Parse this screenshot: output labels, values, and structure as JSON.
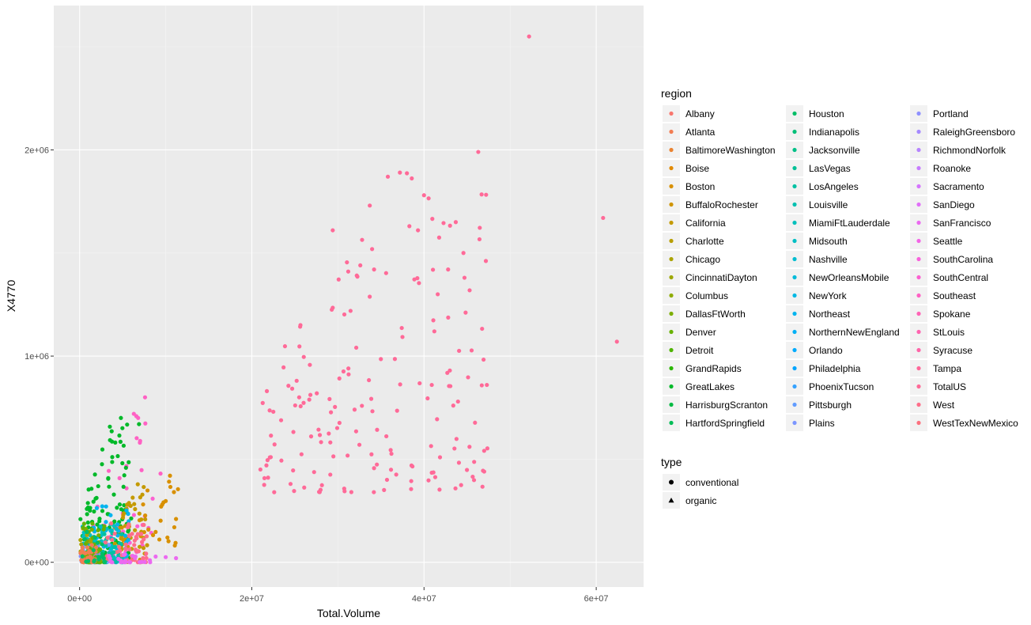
{
  "chart_data": {
    "type": "scatter",
    "xlabel": "Total.Volume",
    "ylabel": "X4770",
    "xlim": [
      -3000000,
      65500000
    ],
    "ylim": [
      -120000,
      2700000
    ],
    "x_ticks": [
      0,
      20000000,
      40000000,
      60000000
    ],
    "x_tick_labels": [
      "0e+00",
      "2e+07",
      "4e+07",
      "6e+07"
    ],
    "y_ticks": [
      0,
      1000000,
      2000000
    ],
    "y_tick_labels": [
      "0e+00",
      "1e+06",
      "2e+06"
    ],
    "grid": true,
    "legend_position": "right",
    "legend": {
      "region_title": "region",
      "regions": [
        {
          "name": "Albany",
          "color": "#F8766D"
        },
        {
          "name": "Atlanta",
          "color": "#F27D52"
        },
        {
          "name": "BaltimoreWashington",
          "color": "#EA8331"
        },
        {
          "name": "Boise",
          "color": "#E18A00"
        },
        {
          "name": "Boston",
          "color": "#D89000"
        },
        {
          "name": "BuffaloRochester",
          "color": "#CF9400"
        },
        {
          "name": "California",
          "color": "#C49A00"
        },
        {
          "name": "Charlotte",
          "color": "#B89E00"
        },
        {
          "name": "Chicago",
          "color": "#ABA300"
        },
        {
          "name": "CincinnatiDayton",
          "color": "#9DA700"
        },
        {
          "name": "Columbus",
          "color": "#8EAB00"
        },
        {
          "name": "DallasFtWorth",
          "color": "#7CAE00"
        },
        {
          "name": "Denver",
          "color": "#68B100"
        },
        {
          "name": "Detroit",
          "color": "#4FB400"
        },
        {
          "name": "GrandRapids",
          "color": "#2AB700"
        },
        {
          "name": "GreatLakes",
          "color": "#00B929"
        },
        {
          "name": "HarrisburgScranton",
          "color": "#00BA42"
        },
        {
          "name": "HartfordSpringfield",
          "color": "#00BC56"
        },
        {
          "name": "Houston",
          "color": "#00BE67"
        },
        {
          "name": "Indianapolis",
          "color": "#00BF78"
        },
        {
          "name": "Jacksonville",
          "color": "#00C087"
        },
        {
          "name": "LasVegas",
          "color": "#00C096"
        },
        {
          "name": "LosAngeles",
          "color": "#00C1A3"
        },
        {
          "name": "Louisville",
          "color": "#00C0B0"
        },
        {
          "name": "MiamiFtLauderdale",
          "color": "#00C0BC"
        },
        {
          "name": "Midsouth",
          "color": "#00BFC4"
        },
        {
          "name": "Nashville",
          "color": "#00BDD0"
        },
        {
          "name": "NewOrleansMobile",
          "color": "#00BBDA"
        },
        {
          "name": "NewYork",
          "color": "#00B8E4"
        },
        {
          "name": "Northeast",
          "color": "#00B4EF"
        },
        {
          "name": "NorthernNewEngland",
          "color": "#00B0F6"
        },
        {
          "name": "Orlando",
          "color": "#00ABFD"
        },
        {
          "name": "Philadelphia",
          "color": "#00A5FF"
        },
        {
          "name": "PhoenixTucson",
          "color": "#35A2FF"
        },
        {
          "name": "Pittsburgh",
          "color": "#619CFF"
        },
        {
          "name": "Plains",
          "color": "#7C96FF"
        },
        {
          "name": "Portland",
          "color": "#8F91FF"
        },
        {
          "name": "RaleighGreensboro",
          "color": "#A58AFF"
        },
        {
          "name": "RichmondNorfolk",
          "color": "#B784FF"
        },
        {
          "name": "Roanoke",
          "color": "#C77CFF"
        },
        {
          "name": "Sacramento",
          "color": "#D575FE"
        },
        {
          "name": "SanDiego",
          "color": "#E16FF9"
        },
        {
          "name": "SanFrancisco",
          "color": "#EB69F0"
        },
        {
          "name": "Seattle",
          "color": "#F365E6"
        },
        {
          "name": "SouthCarolina",
          "color": "#F962DC"
        },
        {
          "name": "SouthCentral",
          "color": "#FC61D1"
        },
        {
          "name": "Southeast",
          "color": "#FF61C4"
        },
        {
          "name": "Spokane",
          "color": "#FF63B6"
        },
        {
          "name": "StLouis",
          "color": "#FF64B0"
        },
        {
          "name": "Syracuse",
          "color": "#FF65A8"
        },
        {
          "name": "Tampa",
          "color": "#FF6799"
        },
        {
          "name": "TotalUS",
          "color": "#FF6A98"
        },
        {
          "name": "West",
          "color": "#FE6E8A"
        },
        {
          "name": "WestTexNewMexico",
          "color": "#FC717F"
        }
      ],
      "type_title": "type",
      "types": [
        {
          "name": "conventional",
          "shape": "circle"
        },
        {
          "name": "organic",
          "shape": "triangle"
        }
      ]
    },
    "clusters": [
      {
        "region": "TotalUS",
        "count": 160,
        "x": [
          21000000,
          47500000
        ],
        "y": [
          340000,
          1900000
        ],
        "shape": "tall"
      },
      {
        "region": "Southeast",
        "count": 18,
        "x": [
          500000,
          8000000
        ],
        "y": [
          150000,
          800000
        ],
        "shape": "tall"
      },
      {
        "region": "SouthCentral",
        "count": 35,
        "x": [
          3000000,
          8500000
        ],
        "y": [
          0,
          350000
        ],
        "shape": "tall"
      },
      {
        "region": "GreatLakes",
        "count": 120,
        "x": [
          100000,
          6000000
        ],
        "y": [
          0,
          700000
        ],
        "shape": "tall"
      },
      {
        "region": "Boston",
        "count": 30,
        "x": [
          4000000,
          11500000
        ],
        "y": [
          50000,
          420000
        ],
        "shape": "tall"
      },
      {
        "region": "California",
        "count": 50,
        "x": [
          4000000,
          8000000
        ],
        "y": [
          0,
          380000
        ],
        "shape": "tall"
      },
      {
        "region": "Northeast",
        "count": 60,
        "x": [
          500000,
          6000000
        ],
        "y": [
          0,
          280000
        ],
        "shape": "wide"
      },
      {
        "region": "Midsouth",
        "count": 60,
        "x": [
          200000,
          4500000
        ],
        "y": [
          0,
          200000
        ],
        "shape": "wide"
      },
      {
        "region": "Plains",
        "count": 40,
        "x": [
          100000,
          3500000
        ],
        "y": [
          0,
          100000
        ],
        "shape": "wide"
      },
      {
        "region": "LosAngeles",
        "count": 40,
        "x": [
          1000000,
          5000000
        ],
        "y": [
          0,
          150000
        ],
        "shape": "wide"
      },
      {
        "region": "West",
        "count": 50,
        "x": [
          3000000,
          8000000
        ],
        "y": [
          0,
          220000
        ],
        "shape": "wide"
      },
      {
        "region": "Chicago",
        "count": 25,
        "x": [
          100000,
          1500000
        ],
        "y": [
          0,
          180000
        ],
        "shape": "wide"
      },
      {
        "region": "SanFrancisco",
        "count": 40,
        "x": [
          100000,
          9000000
        ],
        "y": [
          0,
          40000
        ],
        "shape": "wide"
      },
      {
        "region": "Denver",
        "count": 30,
        "x": [
          200000,
          3000000
        ],
        "y": [
          0,
          200000
        ],
        "shape": "wide"
      },
      {
        "region": "DallasFtWorth",
        "count": 20,
        "x": [
          200000,
          2500000
        ],
        "y": [
          0,
          160000
        ],
        "shape": "wide"
      },
      {
        "region": "Atlanta",
        "count": 30,
        "x": [
          100000,
          2000000
        ],
        "y": [
          0,
          100000
        ],
        "shape": "wide"
      },
      {
        "region": "Houston",
        "count": 20,
        "x": [
          300000,
          3000000
        ],
        "y": [
          0,
          150000
        ],
        "shape": "wide"
      }
    ],
    "points": [
      {
        "x": 52200000,
        "y": 2550000,
        "region": "TotalUS"
      },
      {
        "x": 46300000,
        "y": 1990000,
        "region": "TotalUS"
      },
      {
        "x": 60800000,
        "y": 1670000,
        "region": "TotalUS"
      },
      {
        "x": 62400000,
        "y": 1070000,
        "region": "TotalUS"
      },
      {
        "x": 47300000,
        "y": 860000,
        "region": "TotalUS"
      },
      {
        "x": 44700000,
        "y": 1380000,
        "region": "TotalUS"
      },
      {
        "x": 42800000,
        "y": 1420000,
        "region": "TotalUS"
      },
      {
        "x": 41200000,
        "y": 1120000,
        "region": "TotalUS"
      },
      {
        "x": 40000000,
        "y": 1780000,
        "region": "TotalUS"
      },
      {
        "x": 37200000,
        "y": 1890000,
        "region": "TotalUS"
      },
      {
        "x": 35800000,
        "y": 1870000,
        "region": "TotalUS"
      },
      {
        "x": 33700000,
        "y": 1730000,
        "region": "TotalUS"
      },
      {
        "x": 29400000,
        "y": 1610000,
        "region": "TotalUS"
      },
      {
        "x": 31200000,
        "y": 1410000,
        "region": "TotalUS"
      },
      {
        "x": 32600000,
        "y": 1440000,
        "region": "TotalUS"
      },
      {
        "x": 34200000,
        "y": 1420000,
        "region": "TotalUS"
      },
      {
        "x": 38300000,
        "y": 1630000,
        "region": "TotalUS"
      },
      {
        "x": 39300000,
        "y": 1610000,
        "region": "TotalUS"
      },
      {
        "x": 25500000,
        "y": 800000,
        "region": "TotalUS"
      },
      {
        "x": 22500000,
        "y": 730000,
        "region": "TotalUS"
      },
      {
        "x": 22200000,
        "y": 510000,
        "region": "TotalUS"
      },
      {
        "x": 21000000,
        "y": 450000,
        "region": "TotalUS"
      },
      {
        "x": 22600000,
        "y": 340000,
        "region": "TotalUS"
      },
      {
        "x": 24500000,
        "y": 380000,
        "region": "TotalUS"
      },
      {
        "x": 43000000,
        "y": 930000,
        "region": "TotalUS"
      },
      {
        "x": 43400000,
        "y": 760000,
        "region": "TotalUS"
      },
      {
        "x": 35700000,
        "y": 400000,
        "region": "TotalUS"
      },
      {
        "x": 40900000,
        "y": 860000,
        "region": "TotalUS"
      },
      {
        "x": 10500000,
        "y": 420000,
        "region": "Boston"
      },
      {
        "x": 11200000,
        "y": 210000,
        "region": "Boston"
      },
      {
        "x": 11000000,
        "y": 170000,
        "region": "Boston"
      },
      {
        "x": 10200000,
        "y": 120000,
        "region": "Boston"
      },
      {
        "x": 9600000,
        "y": 280000,
        "region": "Boston"
      },
      {
        "x": 7600000,
        "y": 800000,
        "region": "Southeast"
      },
      {
        "x": 6300000,
        "y": 720000,
        "region": "Southeast"
      },
      {
        "x": 6800000,
        "y": 700000,
        "region": "Southeast"
      },
      {
        "x": 9400000,
        "y": 430000,
        "region": "Southeast"
      },
      {
        "x": 7000000,
        "y": 580000,
        "region": "Southeast"
      },
      {
        "x": 6900000,
        "y": 670000,
        "region": "GreatLakes"
      },
      {
        "x": 4800000,
        "y": 700000,
        "region": "GreatLakes"
      },
      {
        "x": 11200000,
        "y": 20000,
        "region": "SanFrancisco"
      },
      {
        "x": 10000000,
        "y": 25000,
        "region": "SanFrancisco"
      }
    ]
  }
}
